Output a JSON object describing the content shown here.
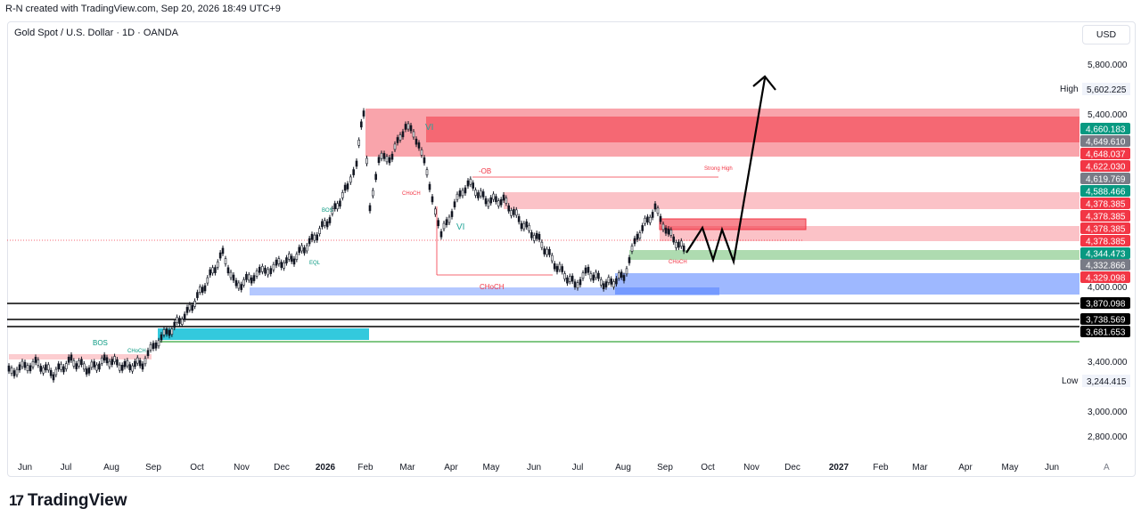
{
  "header": {
    "created": "R-N created with TradingView.com, Sep 20, 2026 18:49 UTC+9"
  },
  "symbol": {
    "title": "Gold Spot / U.S. Dollar · 1D · OANDA"
  },
  "toolbar": {
    "currency": "USD",
    "auto_label": "A"
  },
  "branding": {
    "logo_mark": "17",
    "logo_text": "TradingView"
  },
  "chart_data": {
    "type": "candlestick",
    "title": "Gold Spot / U.S. Dollar · 1D · OANDA",
    "y_ticks": [
      5800,
      5400,
      4000,
      3400,
      3000,
      2800
    ],
    "x_ticks": [
      "Jun",
      "Jul",
      "Aug",
      "Sep",
      "Oct",
      "Nov",
      "Dec",
      "2026",
      "Feb",
      "Mar",
      "Apr",
      "May",
      "Jun",
      "Jul",
      "Aug",
      "Sep",
      "Oct",
      "Nov",
      "Dec",
      "2027",
      "Feb",
      "Mar",
      "Apr",
      "May",
      "Jun"
    ],
    "high_label": "High",
    "high_value": "5,602.225",
    "low_label": "Low",
    "low_value": "3,244.415",
    "price_tags": [
      {
        "text": "4,660.183",
        "bg": "#089981",
        "fg": "#ffffff"
      },
      {
        "text": "4,649.610",
        "bg": "#787b86",
        "fg": "#ffffff"
      },
      {
        "text": "4,648.037",
        "bg": "#f23645",
        "fg": "#ffffff"
      },
      {
        "text": "4,622.030",
        "bg": "#f23645",
        "fg": "#ffffff"
      },
      {
        "text": "4,619.769",
        "bg": "#787b86",
        "fg": "#ffffff"
      },
      {
        "text": "4,588.466",
        "bg": "#089981",
        "fg": "#ffffff"
      },
      {
        "text": "4,378.385",
        "bg": "#f23645",
        "fg": "#ffffff"
      },
      {
        "text": "4,378.385",
        "bg": "#f23645",
        "fg": "#ffffff"
      },
      {
        "text": "4,378.385",
        "bg": "#f23645",
        "fg": "#ffffff"
      },
      {
        "text": "4,378.385",
        "bg": "#f23645",
        "fg": "#ffffff"
      },
      {
        "text": "4,344.473",
        "bg": "#089981",
        "fg": "#ffffff"
      },
      {
        "text": "4,332.866",
        "bg": "#787b86",
        "fg": "#ffffff"
      },
      {
        "text": "4,329.098",
        "bg": "#f23645",
        "fg": "#ffffff"
      },
      {
        "text": "3,870.098",
        "bg": "#000000",
        "fg": "#ffffff"
      },
      {
        "text": "3,738.569",
        "bg": "#000000",
        "fg": "#ffffff"
      },
      {
        "text": "3,681.653",
        "bg": "#000000",
        "fg": "#ffffff"
      }
    ],
    "colors": {
      "up": "#131722",
      "down": "#131722",
      "bear_zone": "#f23645",
      "bull_zone": "#4caf50",
      "demand_zone": "#2962ff",
      "fvg": "#00bcd4"
    },
    "annotations": [
      "BOS",
      "CHoCH",
      "VI",
      "-OB",
      "Strong High",
      "EQL",
      "VI",
      "CHoCH",
      "BOS",
      "CHoCH",
      "CHoCH"
    ]
  }
}
